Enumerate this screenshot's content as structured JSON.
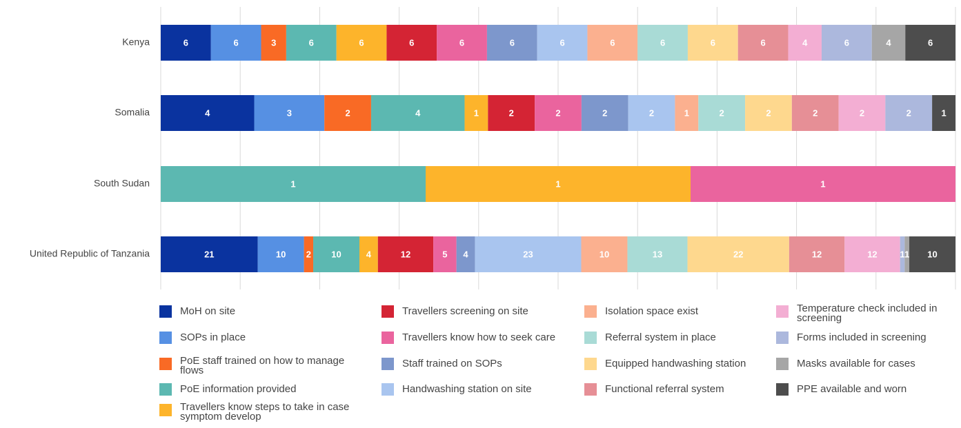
{
  "chart_data": {
    "type": "stacked-bar-100",
    "categories": [
      "Kenya",
      "Somalia",
      "South Sudan",
      "United Republic of Tanzania"
    ],
    "series": [
      {
        "name": "MoH on site",
        "color": "#0a339f",
        "values": [
          6,
          4,
          null,
          21
        ]
      },
      {
        "name": "SOPs in place",
        "color": "#5690e3",
        "values": [
          6,
          3,
          null,
          10
        ]
      },
      {
        "name": "PoE staff trained on how to manage flows",
        "color": "#f96a25",
        "values": [
          3,
          2,
          null,
          2
        ]
      },
      {
        "name": "PoE information provided",
        "color": "#5cb8b1",
        "values": [
          6,
          4,
          1,
          10
        ]
      },
      {
        "name": "Travellers know steps to take in case symptom develop",
        "color": "#fdb42b",
        "values": [
          6,
          1,
          1,
          4
        ]
      },
      {
        "name": "Travellers screening on site",
        "color": "#d42434",
        "values": [
          6,
          2,
          null,
          12
        ]
      },
      {
        "name": "Travellers know how to seek care",
        "color": "#ea649e",
        "values": [
          6,
          2,
          1,
          5
        ]
      },
      {
        "name": "Staff trained on SOPs",
        "color": "#7d97cc",
        "values": [
          6,
          2,
          null,
          4
        ]
      },
      {
        "name": "Handwashing station on site",
        "color": "#a9c5ef",
        "values": [
          6,
          2,
          null,
          23
        ]
      },
      {
        "name": "Isolation space exist",
        "color": "#fbb08f",
        "values": [
          6,
          1,
          null,
          10
        ]
      },
      {
        "name": "Referral system in place",
        "color": "#a9dbd6",
        "values": [
          6,
          2,
          null,
          13
        ]
      },
      {
        "name": "Equipped handwashing station",
        "color": "#fed88e",
        "values": [
          6,
          2,
          null,
          22
        ]
      },
      {
        "name": "Functional referral system",
        "color": "#e68f96",
        "values": [
          6,
          2,
          null,
          12
        ]
      },
      {
        "name": "Temperature check included in screening",
        "color": "#f3aed3",
        "values": [
          4,
          2,
          null,
          12
        ]
      },
      {
        "name": "Forms included in screening",
        "color": "#acb8dd",
        "values": [
          6,
          2,
          null,
          1
        ]
      },
      {
        "name": "Masks available for cases",
        "color": "#a6a6a6",
        "values": [
          4,
          null,
          null,
          1
        ]
      },
      {
        "name": "PPE available and worn",
        "color": "#4d4d4d",
        "values": [
          6,
          1,
          null,
          10
        ]
      }
    ],
    "grid": true
  }
}
